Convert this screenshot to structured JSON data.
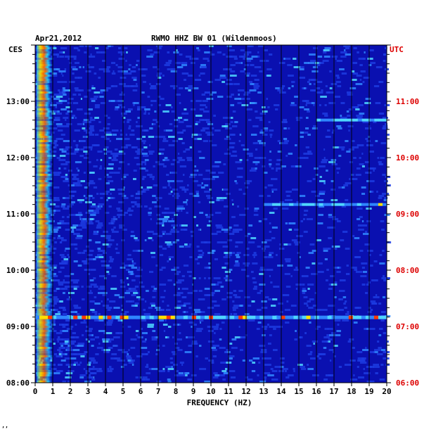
{
  "header": {
    "date": "Apr21,2012",
    "station": "RWMO HHZ BW 01 (Wildenmoos)",
    "left_timezone": "CES",
    "right_timezone": "UTC"
  },
  "footer_mark": "ʼʼ",
  "chart_data": {
    "type": "heatmap",
    "title": "RWMO HHZ BW 01 (Wildenmoos)",
    "xlabel": "FREQUENCY (HZ)",
    "x_ticks": [
      "0",
      "1",
      "2",
      "3",
      "4",
      "5",
      "6",
      "7",
      "8",
      "9",
      "10",
      "11",
      "12",
      "13",
      "14",
      "15",
      "16",
      "17",
      "18",
      "19",
      "20"
    ],
    "xlim": [
      0,
      20
    ],
    "y_ticks_left": [
      "08:00",
      "09:00",
      "10:00",
      "11:00",
      "12:00",
      "13:00"
    ],
    "y_ticks_right": [
      "06:00",
      "07:00",
      "08:00",
      "09:00",
      "10:00",
      "11:00"
    ],
    "ylim_local": [
      "08:00",
      "14:00"
    ],
    "grid": true,
    "colors": {
      "background": "#0a10b0",
      "grid": "#000000",
      "right_axis_text": "#dd0000",
      "left_axis_text": "#000000"
    },
    "features": [
      {
        "label": "low-frequency band",
        "x_range": [
          0,
          1
        ],
        "intensity": "high"
      },
      {
        "label": "broadband event",
        "time_utc": "07:10",
        "x_range": [
          0,
          20
        ],
        "intensity": "high"
      },
      {
        "label": "event",
        "time_utc": "09:10",
        "x_range": [
          13,
          20
        ],
        "intensity": "medium"
      },
      {
        "label": "event",
        "time_utc": "10:40",
        "x_range": [
          16,
          20
        ],
        "intensity": "medium"
      }
    ]
  }
}
